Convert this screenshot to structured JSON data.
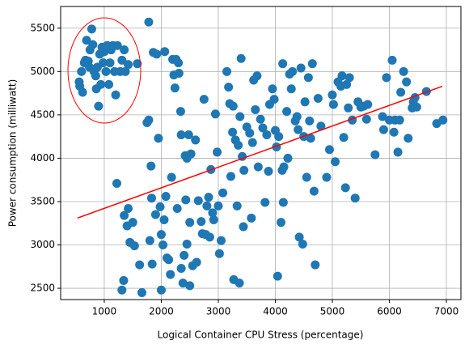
{
  "chart_data": {
    "type": "scatter",
    "x_label": "Logical Container CPU Stress (percentage)",
    "y_label": "Power consumption (milliwatt)",
    "color": "#1f77b4",
    "x": [
      560,
      570,
      600,
      620,
      650,
      670,
      690,
      720,
      740,
      750,
      780,
      800,
      820,
      850,
      860,
      880,
      900,
      920,
      940,
      960,
      980,
      1000,
      1030,
      1050,
      1080,
      1100,
      1120,
      1150,
      1180,
      1200,
      1230,
      1280,
      1310,
      1350,
      1370,
      1420,
      1580,
      1780,
      1220,
      1310,
      1340,
      1350,
      1400,
      1420,
      1450,
      1500,
      1530,
      1620,
      1660,
      1750,
      1780,
      1800,
      1820,
      1830,
      1840,
      1860,
      1900,
      1920,
      1950,
      1980,
      2000,
      2000,
      2030,
      2050,
      2060,
      2080,
      2100,
      2130,
      2160,
      2180,
      2200,
      2220,
      2240,
      2260,
      2280,
      2300,
      2310,
      2340,
      2350,
      2350,
      2380,
      2400,
      2420,
      2430,
      2450,
      2450,
      2480,
      2500,
      2500,
      2520,
      2550,
      2600,
      2620,
      2650,
      2700,
      2720,
      2750,
      2780,
      2800,
      2830,
      2850,
      2870,
      2900,
      2920,
      2950,
      2980,
      3000,
      3020,
      3050,
      3080,
      3150,
      3180,
      3200,
      3220,
      3250,
      3260,
      3270,
      3300,
      3330,
      3350,
      3370,
      3380,
      3400,
      3420,
      3440,
      3450,
      3500,
      3550,
      3580,
      3600,
      3620,
      3650,
      3680,
      3700,
      3740,
      3780,
      3820,
      3850,
      3880,
      3900,
      3950,
      3980,
      4000,
      4020,
      4040,
      4060,
      4100,
      4120,
      4130,
      4140,
      4150,
      4200,
      4220,
      4250,
      4280,
      4300,
      4350,
      4380,
      4400,
      4420,
      4450,
      4480,
      4500,
      4520,
      4550,
      4580,
      4600,
      4620,
      4650,
      4680,
      4700,
      4750,
      4800,
      4900,
      4950,
      5000,
      5020,
      5050,
      5100,
      5150,
      5170,
      5200,
      5230,
      5250,
      5280,
      5300,
      5350,
      5400,
      5450,
      5500,
      5550,
      5600,
      5620,
      5750,
      5880,
      5900,
      5950,
      6000,
      6050,
      6080,
      6100,
      6150,
      6180,
      6200,
      6250,
      6300,
      6330,
      6400,
      6420,
      6450,
      6480,
      6650,
      6830,
      6940
    ],
    "values": [
      4880,
      4830,
      5000,
      4760,
      5100,
      5130,
      5360,
      5120,
      5050,
      5250,
      5490,
      5310,
      5000,
      4950,
      4800,
      5050,
      4600,
      5200,
      4850,
      5280,
      5100,
      5230,
      5000,
      5300,
      4850,
      5100,
      5250,
      5300,
      5000,
      4730,
      5300,
      5000,
      5130,
      5250,
      5000,
      5080,
      5090,
      5570,
      3710,
      2480,
      2590,
      3340,
      3220,
      3420,
      3030,
      3260,
      2990,
      2770,
      2450,
      4410,
      4440,
      3050,
      3910,
      3540,
      2780,
      5220,
      3350,
      5200,
      4230,
      3440,
      3120,
      2480,
      3000,
      3290,
      5230,
      3560,
      2850,
      2830,
      2660,
      3780,
      5140,
      4960,
      4810,
      5140,
      3420,
      5100,
      4980,
      4540,
      4270,
      2730,
      2560,
      2880,
      4030,
      3520,
      3010,
      4000,
      4270,
      3260,
      2530,
      4050,
      2760,
      4210,
      2800,
      3510,
      3270,
      3130,
      4680,
      3120,
      3450,
      3550,
      3090,
      3870,
      3370,
      3290,
      4510,
      4070,
      3450,
      2900,
      3050,
      3600,
      5000,
      4820,
      4630,
      3790,
      4300,
      4600,
      2600,
      4210,
      3450,
      4150,
      2560,
      4480,
      5150,
      4020,
      3210,
      3860,
      4360,
      4290,
      3310,
      4180,
      4900,
      4560,
      4950,
      3900,
      4450,
      4350,
      3490,
      4270,
      3850,
      4620,
      4800,
      4680,
      4320,
      4130,
      2640,
      4250,
      3260,
      3860,
      5090,
      3490,
      3900,
      4540,
      4000,
      4970,
      4800,
      5000,
      4430,
      4480,
      4330,
      3090,
      5040,
      3010,
      4250,
      4650,
      3780,
      4930,
      4430,
      4230,
      5090,
      3620,
      2770,
      4690,
      4370,
      3780,
      4100,
      4730,
      4620,
      3960,
      4880,
      4830,
      4950,
      4240,
      3660,
      4850,
      4580,
      4930,
      4440,
      3540,
      4650,
      4590,
      4600,
      4450,
      4620,
      4040,
      4480,
      4330,
      4930,
      4440,
      5130,
      4300,
      4440,
      4070,
      4440,
      4760,
      5000,
      4880,
      4230,
      4580,
      4650,
      4700,
      4590,
      4770,
      4400,
      4440
    ],
    "trend": {
      "color": "red",
      "x": [
        530,
        6930
      ],
      "values": [
        3310,
        4830
      ]
    },
    "xlim": [
      235,
      7255
    ],
    "ylim": [
      2370,
      5750
    ],
    "xticks": [
      1000,
      2000,
      3000,
      4000,
      5000,
      6000,
      7000
    ],
    "yticks": [
      2500,
      3000,
      3500,
      4000,
      4500,
      5000,
      5500
    ],
    "grid": true
  }
}
